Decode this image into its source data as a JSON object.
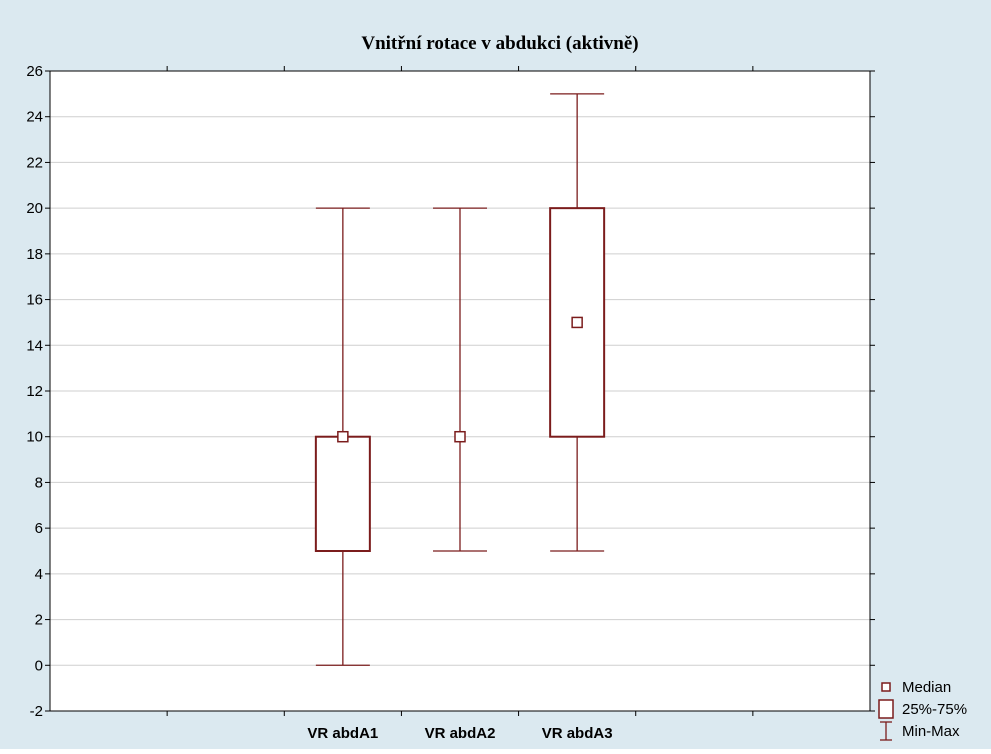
{
  "chart_data": {
    "type": "boxplot",
    "title": "Vnitřní rotace v abdukci (aktivně)",
    "xlabel": "",
    "ylabel": "",
    "ylim": [
      -2,
      26
    ],
    "yticks": [
      -2,
      0,
      2,
      4,
      6,
      8,
      10,
      12,
      14,
      16,
      18,
      20,
      22,
      24,
      26
    ],
    "grid": true,
    "legend_position": "bottom-right",
    "categories": [
      "",
      "",
      "VR abdA1",
      "VR abdA2",
      "VR abdA3",
      "",
      ""
    ],
    "boxes": [
      {
        "category": "VR abdA1",
        "min": 0,
        "q1": 5,
        "median": 10,
        "q3": 10,
        "max": 20
      },
      {
        "category": "VR abdA2",
        "min": 5,
        "q1": 10,
        "median": 10,
        "q3": 10,
        "max": 20
      },
      {
        "category": "VR abdA3",
        "min": 5,
        "q1": 10,
        "median": 15,
        "q3": 20,
        "max": 25
      }
    ],
    "legend": [
      {
        "symbol": "median",
        "label": "Median"
      },
      {
        "symbol": "box",
        "label": "25%-75%"
      },
      {
        "symbol": "whisker",
        "label": "Min-Max"
      }
    ],
    "colors": {
      "series": "#7b1c1c",
      "background": "#dbe9f0",
      "plot": "#ffffff",
      "grid": "#cfcfcf"
    }
  }
}
